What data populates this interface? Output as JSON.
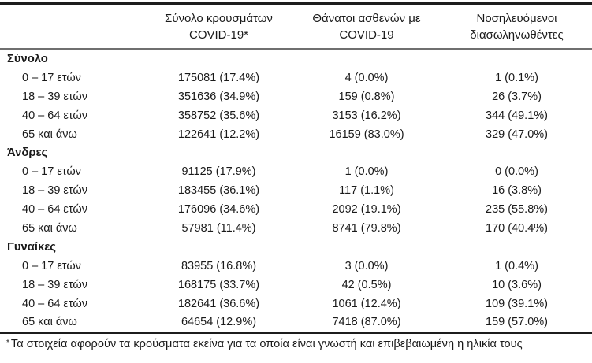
{
  "table": {
    "headers": [
      {
        "line1": "Σύνολο κρουσμάτων",
        "line2": "COVID-19*"
      },
      {
        "line1": "Θάνατοι ασθενών με",
        "line2": "COVID-19"
      },
      {
        "line1": "Νοσηλευόμενοι",
        "line2": "διασωληνωθέντες"
      }
    ],
    "sections": [
      {
        "label": "Σύνολο",
        "rows": [
          {
            "age": "0 – 17 ετών",
            "cases": "175081 (17.4%)",
            "deaths": "4 (0.0%)",
            "intubated": "1 (0.1%)"
          },
          {
            "age": "18 – 39 ετών",
            "cases": "351636 (34.9%)",
            "deaths": "159 (0.8%)",
            "intubated": "26 (3.7%)"
          },
          {
            "age": "40 – 64 ετών",
            "cases": "358752 (35.6%)",
            "deaths": "3153 (16.2%)",
            "intubated": "344 (49.1%)"
          },
          {
            "age": "65 και άνω",
            "cases": "122641 (12.2%)",
            "deaths": "16159 (83.0%)",
            "intubated": "329 (47.0%)"
          }
        ]
      },
      {
        "label": "Άνδρες",
        "rows": [
          {
            "age": "0 – 17 ετών",
            "cases": "91125 (17.9%)",
            "deaths": "1 (0.0%)",
            "intubated": "0 (0.0%)"
          },
          {
            "age": "18 – 39 ετών",
            "cases": "183455 (36.1%)",
            "deaths": "117 (1.1%)",
            "intubated": "16 (3.8%)"
          },
          {
            "age": "40 – 64 ετών",
            "cases": "176096 (34.6%)",
            "deaths": "2092 (19.1%)",
            "intubated": "235 (55.8%)"
          },
          {
            "age": "65 και άνω",
            "cases": "57981 (11.4%)",
            "deaths": "8741 (79.8%)",
            "intubated": "170 (40.4%)"
          }
        ]
      },
      {
        "label": "Γυναίκες",
        "rows": [
          {
            "age": "0 – 17 ετών",
            "cases": "83955 (16.8%)",
            "deaths": "3 (0.0%)",
            "intubated": "1 (0.4%)"
          },
          {
            "age": "18 – 39 ετών",
            "cases": "168175 (33.7%)",
            "deaths": "42 (0.5%)",
            "intubated": "10 (3.6%)"
          },
          {
            "age": "40 – 64 ετών",
            "cases": "182641 (36.6%)",
            "deaths": "1061 (12.4%)",
            "intubated": "109 (39.1%)"
          },
          {
            "age": "65 και άνω",
            "cases": "64654 (12.9%)",
            "deaths": "7418 (87.0%)",
            "intubated": "159 (57.0%)"
          }
        ]
      }
    ]
  },
  "footnote": {
    "marker": "*",
    "text": "Τα στοιχεία αφορούν τα κρούσματα εκείνα για τα οποία είναι γνωστή και επιβεβαιωμένη η ηλικία τους"
  },
  "colors": {
    "background": "#ffffff",
    "text": "#1a1a1a",
    "rule_dark": "#1c1c1c",
    "rule_light": "#6f6f6f"
  }
}
